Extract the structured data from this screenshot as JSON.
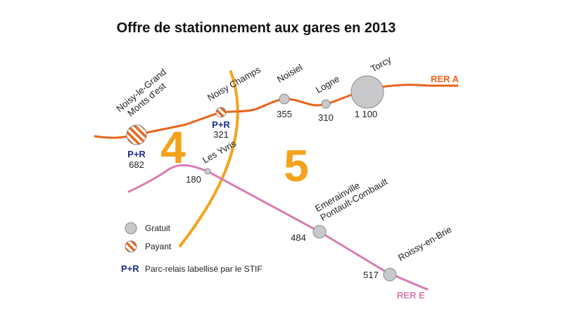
{
  "title": "Offre de stationnement aux gares en 2013",
  "colors": {
    "rer_a": "#e8641b",
    "rer_e": "#d97cb1",
    "zone_boundary": "#f4a21c",
    "free_fill": "#c9c9cb",
    "pr_text": "#1b2a8a"
  },
  "lines": {
    "rer_a": "RER A",
    "rer_e": "RER E"
  },
  "zones": {
    "left": "4",
    "right": "5"
  },
  "stations": {
    "noisy_le_grand": {
      "name_line1": "Noisy-le-Grand",
      "name_line2": "Monts d'est",
      "count": "682",
      "pr": "P+R",
      "type": "payant"
    },
    "noisy_champs": {
      "name": "Noisy Champs",
      "count": "321",
      "pr": "P+R",
      "type": "payant"
    },
    "noisiel": {
      "name": "Noisiel",
      "count": "355",
      "type": "gratuit"
    },
    "logne": {
      "name": "Logne",
      "count": "310",
      "type": "gratuit"
    },
    "torcy": {
      "name": "Torcy",
      "count": "1 100",
      "type": "gratuit"
    },
    "les_yvris": {
      "name": "Les Yvris",
      "count": "180",
      "type": "gratuit"
    },
    "emerainville": {
      "name_line1": "Emerainville",
      "name_line2": "Pontault-Combault",
      "count": "484",
      "type": "gratuit"
    },
    "roissy": {
      "name": "Roissy-en-Brie",
      "count": "517",
      "type": "gratuit"
    }
  },
  "legend": {
    "gratuit": "Gratuit",
    "payant": "Payant",
    "pr_label": "P+R",
    "pr_desc": "Parc-relais labellisé par le STIF"
  }
}
